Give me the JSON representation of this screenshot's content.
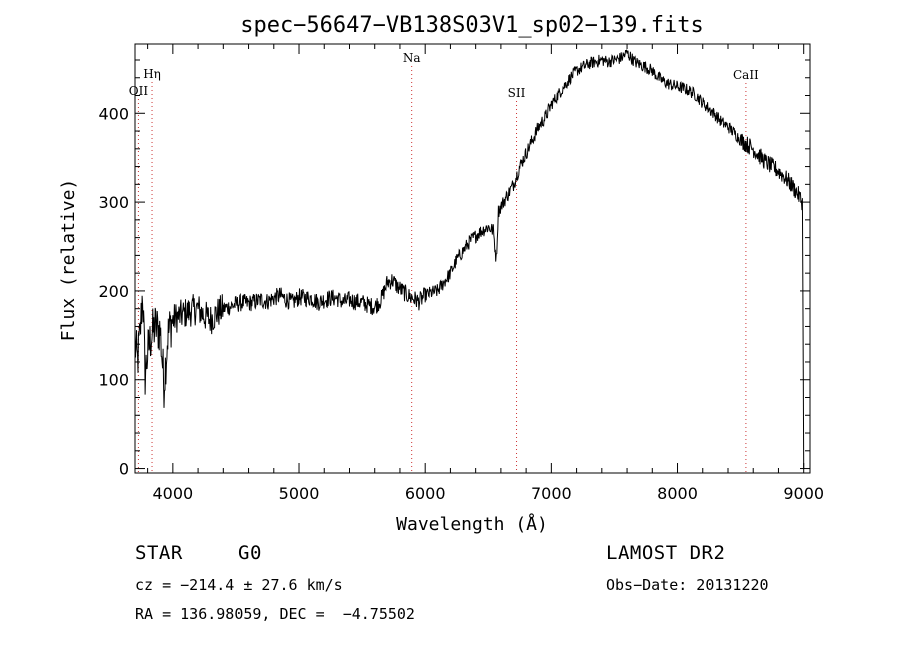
{
  "chart_data": {
    "type": "line",
    "title": "spec−56647−VB138S03V1_sp02−139.fits",
    "xlabel": "Wavelength (Å)",
    "ylabel": "Flux (relative)",
    "xlim": [
      3700,
      9050
    ],
    "ylim": [
      -5,
      478
    ],
    "x_ticks": [
      4000,
      5000,
      6000,
      7000,
      8000,
      9000
    ],
    "y_ticks": [
      0,
      100,
      200,
      300,
      400
    ],
    "grid": false,
    "line_color": "#000000",
    "marker_color": "#cc3333",
    "series": [
      {
        "x": [
          3700,
          3720,
          3740,
          3760,
          3780,
          3800,
          3830,
          3860,
          3900,
          3930,
          3960,
          3990,
          4020,
          4060,
          4100,
          4150,
          4200,
          4250,
          4300,
          4350,
          4400,
          4450,
          4500,
          4550,
          4600,
          4650,
          4700,
          4750,
          4800,
          4850,
          4900,
          4950,
          5000,
          5050,
          5100,
          5150,
          5200,
          5250,
          5300,
          5350,
          5400,
          5450,
          5500,
          5550,
          5600,
          5650,
          5700,
          5740,
          5780,
          5820,
          5860,
          5900,
          5950,
          6000,
          6050,
          6100,
          6150,
          6200,
          6250,
          6300,
          6350,
          6400,
          6450,
          6500,
          6540,
          6563,
          6580,
          6620,
          6660,
          6700,
          6750,
          6800,
          6850,
          6900,
          6950,
          7000,
          7050,
          7100,
          7150,
          7200,
          7250,
          7300,
          7350,
          7400,
          7450,
          7500,
          7550,
          7600,
          7630,
          7660,
          7700,
          7750,
          7800,
          7850,
          7900,
          7950,
          8000,
          8050,
          8100,
          8150,
          8200,
          8250,
          8300,
          8350,
          8400,
          8450,
          8500,
          8550,
          8600,
          8650,
          8700,
          8750,
          8800,
          8850,
          8900,
          8950,
          8990,
          9000
        ],
        "values": [
          140,
          120,
          150,
          200,
          105,
          130,
          150,
          160,
          155,
          95,
          150,
          165,
          170,
          172,
          175,
          178,
          180,
          172,
          168,
          175,
          180,
          182,
          185,
          187,
          186,
          188,
          190,
          188,
          192,
          195,
          190,
          187,
          193,
          192,
          192,
          187,
          190,
          192,
          192,
          187,
          190,
          188,
          187,
          184,
          182,
          190,
          210,
          212,
          205,
          200,
          195,
          192,
          188,
          195,
          198,
          200,
          210,
          220,
          235,
          245,
          255,
          262,
          268,
          272,
          268,
          235,
          290,
          300,
          310,
          320,
          340,
          355,
          370,
          385,
          395,
          410,
          420,
          430,
          440,
          448,
          452,
          456,
          458,
          460,
          458,
          460,
          462,
          468,
          463,
          458,
          455,
          452,
          448,
          440,
          435,
          432,
          430,
          428,
          425,
          420,
          412,
          405,
          398,
          390,
          385,
          378,
          370,
          365,
          360,
          352,
          345,
          340,
          335,
          328,
          320,
          310,
          300,
          0
        ]
      }
    ],
    "lines": [
      {
        "label": "OΙΙ",
        "x": 3727
      },
      {
        "label": "Hη",
        "x": 3835
      },
      {
        "label": "Na",
        "x": 5893
      },
      {
        "label": "SΙΙ",
        "x": 6724
      },
      {
        "label": "CaΙΙ",
        "x": 8542
      }
    ]
  },
  "info": {
    "class": "STAR",
    "subclass": "G0",
    "survey": "LAMOST DR2",
    "cz": "cz = −214.4 ± 27.6 km/s",
    "obs_date": "Obs−Date: 20131220",
    "radec": "RA = 136.98059, DEC =  −4.75502"
  }
}
